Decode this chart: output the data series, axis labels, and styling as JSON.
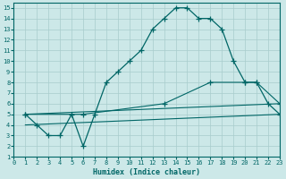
{
  "xlabel": "Humidex (Indice chaleur)",
  "bg_color": "#cce8e8",
  "grid_color": "#a8cccc",
  "line_color": "#006666",
  "xlim": [
    0,
    23
  ],
  "ylim": [
    1,
    15.5
  ],
  "xticks": [
    0,
    1,
    2,
    3,
    4,
    5,
    6,
    7,
    8,
    9,
    10,
    11,
    12,
    13,
    14,
    15,
    16,
    17,
    18,
    19,
    20,
    21,
    22,
    23
  ],
  "yticks": [
    1,
    2,
    3,
    4,
    5,
    6,
    7,
    8,
    9,
    10,
    11,
    12,
    13,
    14,
    15
  ],
  "line1_x": [
    1,
    2,
    3,
    4,
    5,
    6,
    7,
    8,
    9,
    10,
    11,
    12,
    13,
    14,
    15,
    16,
    17,
    18,
    19,
    20,
    21,
    22,
    23
  ],
  "line1_y": [
    5,
    4,
    3,
    3,
    5,
    2,
    5,
    8,
    9,
    10,
    11,
    13,
    14,
    15,
    15,
    14,
    14,
    13,
    10,
    8,
    8,
    6,
    5
  ],
  "line2_x": [
    1,
    6,
    13,
    17,
    20,
    21,
    23
  ],
  "line2_y": [
    5,
    5,
    6,
    8,
    8,
    8,
    6
  ],
  "line3_x": [
    1,
    23
  ],
  "line3_y": [
    5,
    6
  ],
  "line4_x": [
    1,
    23
  ],
  "line4_y": [
    4,
    5
  ]
}
